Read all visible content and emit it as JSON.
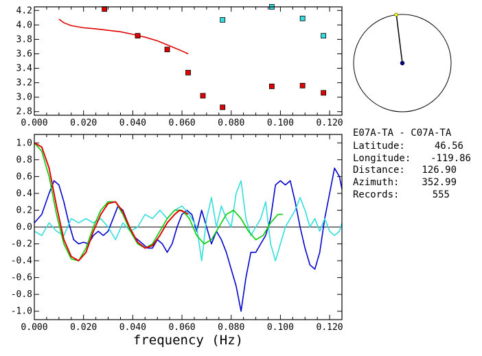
{
  "chart_data": [
    {
      "type": "scatter",
      "xlim": [
        0.0,
        0.125
      ],
      "ylim": [
        2.75,
        4.25
      ],
      "x_ticks": [
        "0.000",
        "0.020",
        "0.040",
        "0.060",
        "0.080",
        "0.100",
        "0.120"
      ],
      "y_ticks": [
        "2.8",
        "3.0",
        "3.2",
        "3.4",
        "3.6",
        "3.8",
        "4.0",
        "4.2"
      ],
      "fit_curve": {
        "color": "#e00000",
        "x": [
          0.01,
          0.012,
          0.015,
          0.02,
          0.025,
          0.03,
          0.035,
          0.04,
          0.045,
          0.05,
          0.055,
          0.06,
          0.0625
        ],
        "y": [
          4.08,
          4.03,
          3.99,
          3.96,
          3.945,
          3.925,
          3.905,
          3.87,
          3.83,
          3.78,
          3.71,
          3.64,
          3.6
        ]
      },
      "series": [
        {
          "color": "#e00000",
          "x": [
            0.0285,
            0.042,
            0.054,
            0.0625,
            0.0685,
            0.0765,
            0.0965,
            0.109,
            0.1175
          ],
          "y": [
            4.22,
            3.85,
            3.66,
            3.34,
            3.02,
            2.86,
            3.15,
            3.16,
            3.06
          ]
        },
        {
          "color": "#33dddd",
          "x": [
            0.0765,
            0.0965,
            0.109,
            0.1175
          ],
          "y": [
            4.07,
            4.25,
            4.09,
            3.85
          ]
        }
      ]
    },
    {
      "type": "line",
      "xlabel": "frequency (Hz)",
      "xlim": [
        0.0,
        0.125
      ],
      "ylim": [
        -1.1,
        1.1
      ],
      "x_ticks": [
        "0.000",
        "0.020",
        "0.040",
        "0.060",
        "0.080",
        "0.100",
        "0.120"
      ],
      "y_ticks": [
        "1.0",
        "0.8",
        "0.6",
        "0.4",
        "0.2",
        "0.0",
        "-0.2",
        "-0.4",
        "-0.6",
        "-0.8",
        "-1.0"
      ],
      "series": [
        {
          "color": "#0000cc",
          "x": [
            0.0,
            0.003,
            0.006,
            0.008,
            0.01,
            0.012,
            0.014,
            0.016,
            0.018,
            0.02,
            0.022,
            0.024,
            0.026,
            0.028,
            0.03,
            0.032,
            0.034,
            0.036,
            0.038,
            0.04,
            0.042,
            0.044,
            0.046,
            0.048,
            0.05,
            0.052,
            0.054,
            0.056,
            0.058,
            0.06,
            0.062,
            0.064,
            0.066,
            0.068,
            0.07,
            0.072,
            0.074,
            0.076,
            0.078,
            0.08,
            0.082,
            0.084,
            0.086,
            0.088,
            0.09,
            0.092,
            0.094,
            0.096,
            0.098,
            0.1,
            0.102,
            0.104,
            0.106,
            0.108,
            0.11,
            0.112,
            0.114,
            0.116,
            0.118,
            0.12,
            0.122,
            0.124,
            0.125
          ],
          "y": [
            0.05,
            0.15,
            0.4,
            0.55,
            0.5,
            0.3,
            0.05,
            -0.15,
            -0.2,
            -0.18,
            -0.2,
            -0.1,
            -0.05,
            -0.1,
            -0.05,
            0.1,
            0.25,
            0.2,
            0.05,
            -0.1,
            -0.15,
            -0.2,
            -0.25,
            -0.25,
            -0.15,
            -0.2,
            -0.3,
            -0.2,
            0.0,
            0.15,
            0.2,
            0.15,
            -0.05,
            0.2,
            0.0,
            -0.2,
            -0.05,
            -0.15,
            -0.3,
            -0.5,
            -0.7,
            -1.0,
            -0.6,
            -0.3,
            -0.3,
            -0.2,
            -0.1,
            0.1,
            0.5,
            0.55,
            0.5,
            0.55,
            0.3,
            0.0,
            -0.25,
            -0.45,
            -0.5,
            -0.3,
            0.1,
            0.4,
            0.7,
            0.6,
            0.45
          ]
        },
        {
          "color": "#33dddd",
          "x": [
            0.0,
            0.003,
            0.006,
            0.009,
            0.012,
            0.015,
            0.018,
            0.021,
            0.024,
            0.027,
            0.03,
            0.033,
            0.036,
            0.039,
            0.042,
            0.045,
            0.048,
            0.051,
            0.054,
            0.057,
            0.06,
            0.063,
            0.066,
            0.068,
            0.07,
            0.072,
            0.074,
            0.076,
            0.078,
            0.08,
            0.082,
            0.084,
            0.086,
            0.088,
            0.09,
            0.092,
            0.094,
            0.096,
            0.098,
            0.1,
            0.102,
            0.104,
            0.106,
            0.108,
            0.11,
            0.112,
            0.114,
            0.116,
            0.118,
            0.12,
            0.122,
            0.124,
            0.125
          ],
          "y": [
            -0.05,
            -0.1,
            0.05,
            -0.05,
            -0.1,
            0.1,
            0.05,
            0.1,
            0.05,
            0.1,
            0.0,
            -0.15,
            0.05,
            -0.05,
            0.0,
            0.15,
            0.1,
            0.2,
            0.1,
            0.2,
            0.25,
            0.15,
            0.0,
            -0.4,
            0.1,
            0.35,
            0.0,
            0.25,
            0.1,
            0.0,
            0.4,
            0.55,
            0.1,
            -0.1,
            0.0,
            0.1,
            0.3,
            -0.2,
            -0.4,
            -0.2,
            0.0,
            0.1,
            0.2,
            0.35,
            0.2,
            0.0,
            0.1,
            -0.05,
            0.1,
            -0.05,
            -0.1,
            -0.05,
            0.05
          ]
        },
        {
          "color": "#00cc00",
          "x": [
            0.0,
            0.003,
            0.006,
            0.009,
            0.012,
            0.015,
            0.018,
            0.021,
            0.024,
            0.027,
            0.03,
            0.033,
            0.036,
            0.039,
            0.042,
            0.045,
            0.048,
            0.051,
            0.054,
            0.057,
            0.06,
            0.063,
            0.066,
            0.069,
            0.072,
            0.075,
            0.078,
            0.081,
            0.084,
            0.087,
            0.09,
            0.093,
            0.096,
            0.099,
            0.101
          ],
          "y": [
            1.0,
            0.9,
            0.6,
            0.15,
            -0.2,
            -0.38,
            -0.4,
            -0.25,
            0.0,
            0.2,
            0.3,
            0.3,
            0.15,
            -0.05,
            -0.2,
            -0.25,
            -0.2,
            -0.05,
            0.1,
            0.2,
            0.2,
            0.1,
            -0.1,
            -0.2,
            -0.15,
            0.0,
            0.15,
            0.2,
            0.1,
            -0.05,
            -0.15,
            -0.1,
            0.05,
            0.15,
            0.15
          ]
        },
        {
          "color": "#e00000",
          "x": [
            0.0,
            0.003,
            0.006,
            0.009,
            0.012,
            0.015,
            0.018,
            0.021,
            0.024,
            0.027,
            0.03,
            0.033,
            0.036,
            0.039,
            0.042,
            0.045,
            0.048,
            0.051,
            0.054,
            0.057,
            0.059,
            0.061,
            0.0625
          ],
          "y": [
            1.0,
            0.95,
            0.7,
            0.25,
            -0.15,
            -0.35,
            -0.4,
            -0.3,
            -0.05,
            0.15,
            0.28,
            0.3,
            0.18,
            -0.02,
            -0.18,
            -0.25,
            -0.22,
            -0.1,
            0.05,
            0.15,
            0.2,
            0.18,
            0.15
          ]
        }
      ]
    }
  ],
  "station": {
    "pair": "E07A-TA - C07A-TA",
    "latitude_label": "Latitude:",
    "latitude_value": "46.56",
    "longitude_label": "Longitude:",
    "longitude_value": "-119.86",
    "distance_label": "Distance:",
    "distance_value": "126.90",
    "azimuth_label": "Azimuth:",
    "azimuth_value": "352.99",
    "records_label": "Records:",
    "records_value": "555"
  },
  "azimuth_dial": {
    "azimuth_deg": 352.99,
    "center_color": "#000080",
    "tip_color": "#ffff00"
  }
}
